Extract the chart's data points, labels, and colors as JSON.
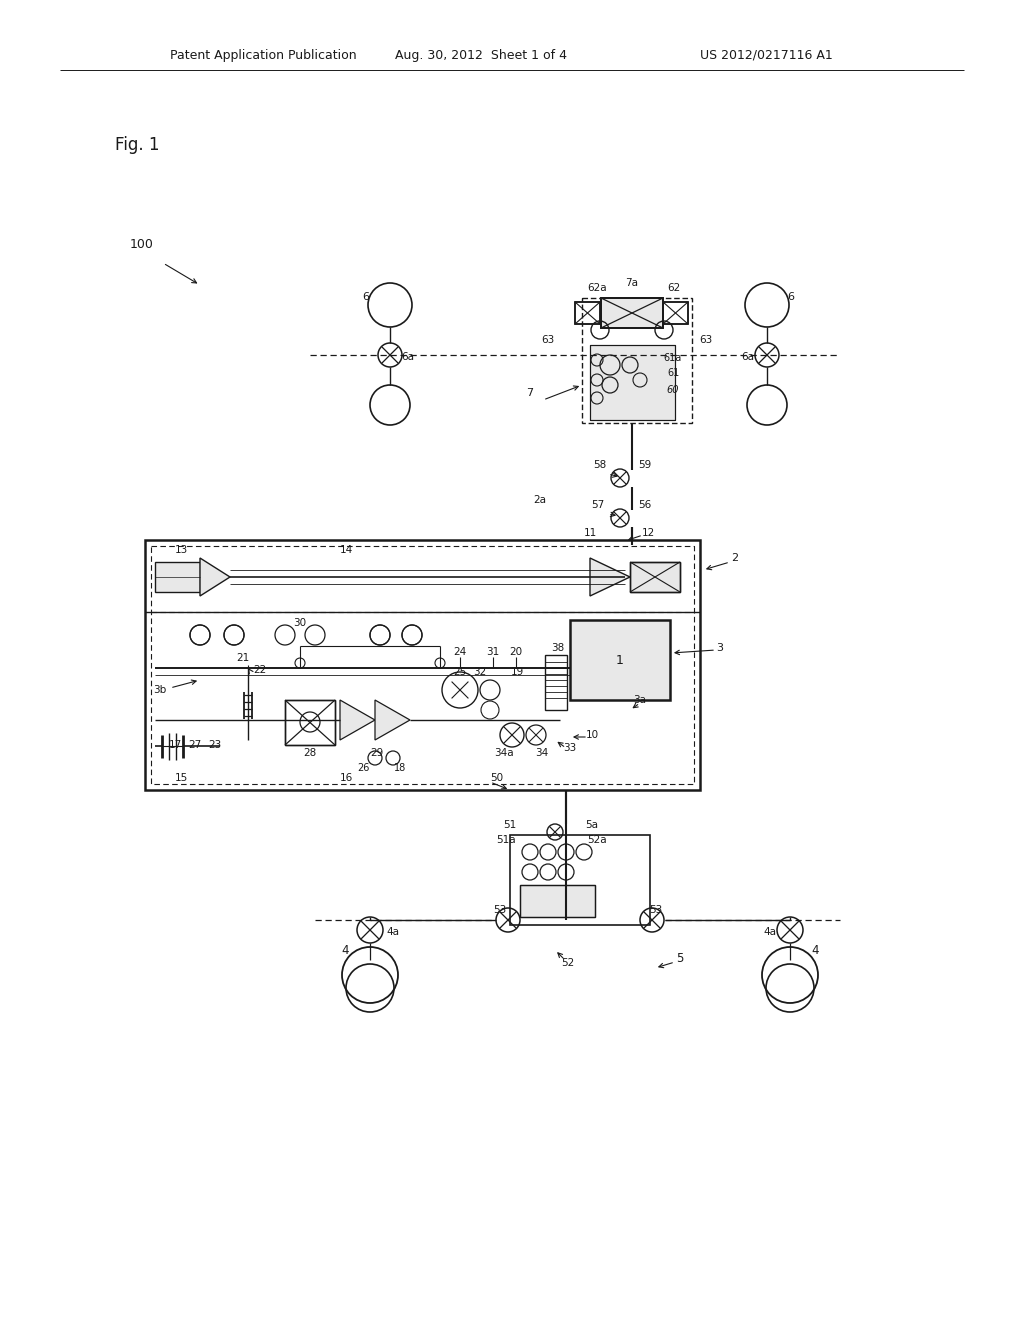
{
  "header_left": "Patent Application Publication",
  "header_mid": "Aug. 30, 2012  Sheet 1 of 4",
  "header_right": "US 2012/0217116 A1",
  "fig_label": "Fig. 1",
  "bg_color": "#ffffff",
  "line_color": "#1a1a1a",
  "gray_fill": "#c8c8c8",
  "light_gray": "#e8e8e8"
}
